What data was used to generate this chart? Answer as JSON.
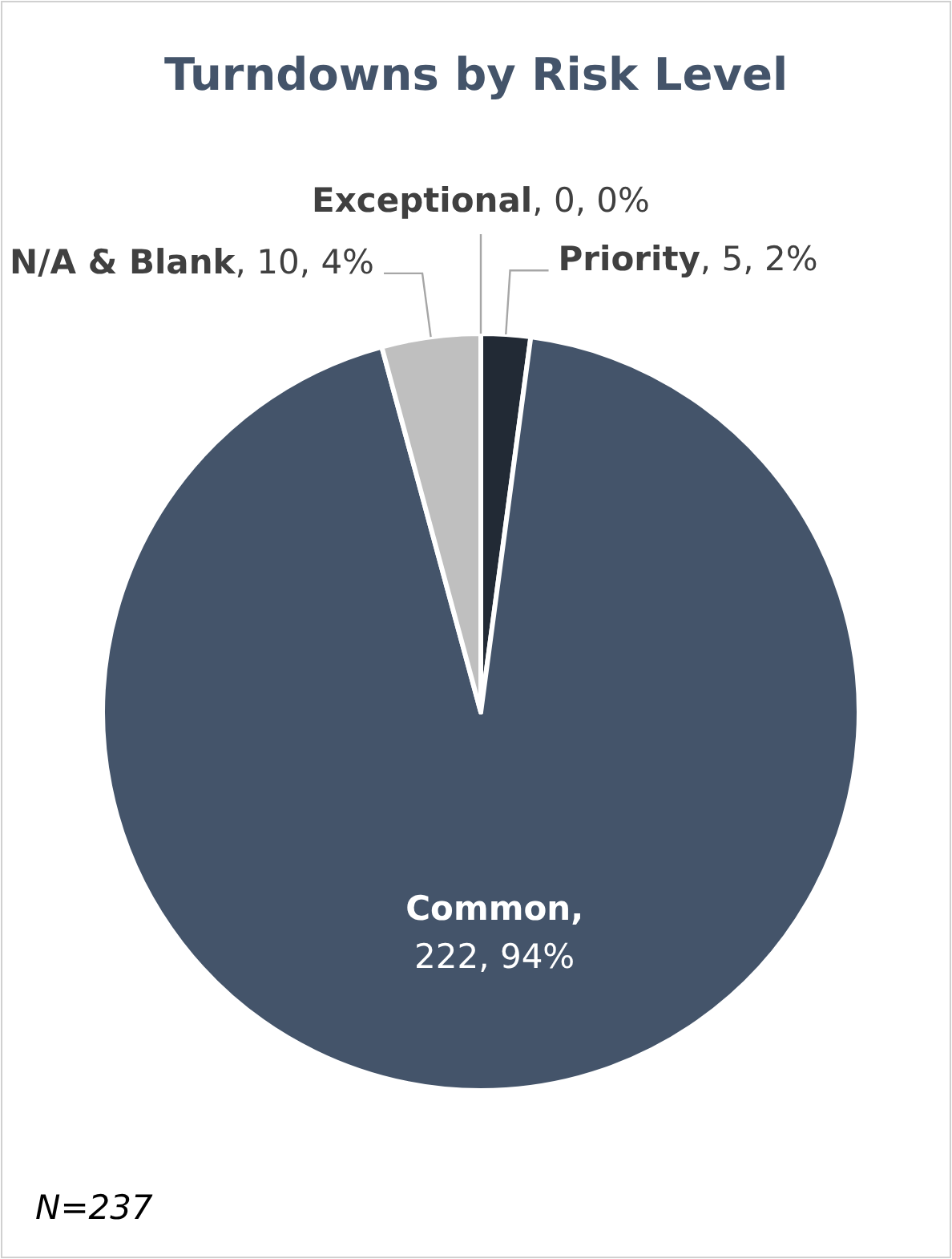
{
  "chart_data": {
    "type": "pie",
    "title": "Turndowns by Risk Level",
    "categories": [
      "Priority",
      "Common",
      "N/A & Blank",
      "Exceptional"
    ],
    "values": [
      5,
      222,
      10,
      0
    ],
    "colors": [
      "#222a35",
      "#44546a",
      "#bfbfbf",
      "#7f7f7f"
    ],
    "value_labels": [
      ", 5, 2%",
      ", 222, 94%",
      ", 10, 4%",
      ", 0, 0%"
    ],
    "annotations": [
      "N=237"
    ]
  }
}
